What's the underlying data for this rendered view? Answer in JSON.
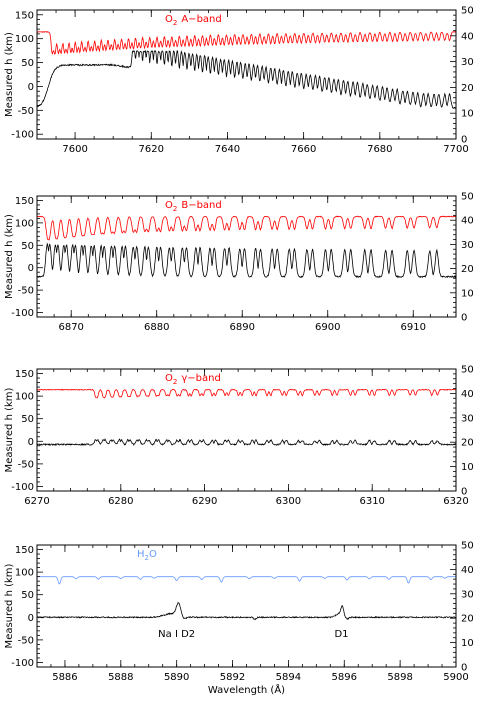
{
  "chart_data": [
    {
      "type": "line",
      "band_label": "O₂ A−band",
      "band_label_parts": {
        "species": "O",
        "sub": "2",
        "name": "A−band"
      },
      "ylabel": "Measured h (km)",
      "xlim": [
        7590,
        7700
      ],
      "ylim_left": [
        -110,
        160
      ],
      "ylim_right": [
        0,
        50
      ],
      "xticks": [
        7600,
        7620,
        7640,
        7660,
        7680,
        7700
      ],
      "xminor_step": 5,
      "yticks_left": [
        -100,
        -50,
        0,
        50,
        100,
        150
      ],
      "yticks_right": [
        0,
        10,
        20,
        30,
        40,
        50
      ],
      "series": [
        {
          "color": "#ff0000",
          "axis": "right",
          "kind": "spectrum",
          "baseline": 41.5,
          "lines": {
            "start": 7594,
            "end": 7698,
            "spacing0": 1.6,
            "growth": 0.012,
            "depth0": 7,
            "decay": 0.025,
            "width": 0.28,
            "pair": 0.45
          }
        },
        {
          "color": "#000000",
          "axis": "left",
          "kind": "profile",
          "baseline": -45,
          "rise_at": 7593,
          "plateau": 45,
          "peak_top": 55,
          "peaks_from": 7615,
          "lines": {
            "start": 7594,
            "end": 7698,
            "spacing0": 1.6,
            "growth": 0.012,
            "height0": 75,
            "decay": 0.018,
            "width": 0.32,
            "pair": 0.45
          }
        }
      ]
    },
    {
      "type": "line",
      "band_label": "O₂ B−band",
      "band_label_parts": {
        "species": "O",
        "sub": "2",
        "name": "B−band"
      },
      "ylabel": "Measured h (km)",
      "xlim": [
        6866,
        6915
      ],
      "ylim_left": [
        -110,
        160
      ],
      "ylim_right": [
        0,
        50
      ],
      "xticks": [
        6870,
        6880,
        6890,
        6900,
        6910
      ],
      "xminor_step": 2,
      "yticks_left": [
        -100,
        -50,
        0,
        50,
        100,
        150
      ],
      "yticks_right": [
        0,
        10,
        20,
        30,
        40,
        50
      ],
      "series": [
        {
          "color": "#ff0000",
          "axis": "right",
          "kind": "spectrum",
          "baseline": 41.5,
          "lines": {
            "start": 6867.2,
            "end": 6914,
            "spacing0": 0.95,
            "growth": 0.04,
            "depth0": 6,
            "decay": 0.02,
            "width": 0.16,
            "pair": 0.3
          }
        },
        {
          "color": "#000000",
          "axis": "left",
          "kind": "profile",
          "baseline": -20,
          "rise_at": 6866.5,
          "plateau": -20,
          "peak_top": 45,
          "peaks_from": 6867,
          "lines": {
            "start": 6867.2,
            "end": 6914,
            "spacing0": 0.95,
            "growth": 0.04,
            "height0": 80,
            "decay": 0.008,
            "width": 0.18,
            "pair": 0.3
          }
        }
      ]
    },
    {
      "type": "line",
      "band_label": "O₂ γ−band",
      "band_label_parts": {
        "species": "O",
        "sub": "2",
        "name": "γ−band"
      },
      "ylabel": "Measured h (km)",
      "xlim": [
        6270,
        6320
      ],
      "ylim_left": [
        -110,
        160
      ],
      "ylim_right": [
        0,
        50
      ],
      "xticks": [
        6270,
        6280,
        6290,
        6300,
        6310,
        6320
      ],
      "xminor_step": 2,
      "yticks_left": [
        -100,
        -50,
        0,
        50,
        100,
        150
      ],
      "yticks_right": [
        0,
        10,
        20,
        30,
        40,
        50
      ],
      "series": [
        {
          "color": "#ff0000",
          "axis": "right",
          "kind": "spectrum",
          "baseline": 41.5,
          "lines": {
            "start": 6277,
            "end": 6319,
            "spacing0": 0.9,
            "growth": 0.045,
            "depth0": 1.4,
            "decay": 0.01,
            "width": 0.12,
            "pair": 0.25
          }
        },
        {
          "color": "#000000",
          "axis": "left",
          "kind": "profile",
          "baseline": -7,
          "rise_at": 6270,
          "plateau": -7,
          "peak_top": 8,
          "peaks_from": 6276,
          "lines": {
            "start": 6277,
            "end": 6319,
            "spacing0": 0.9,
            "growth": 0.045,
            "height0": 12,
            "decay": 0.01,
            "width": 0.14,
            "pair": 0.25
          }
        }
      ]
    },
    {
      "type": "line",
      "band_label": "H₂O",
      "band_label_parts": {
        "species": "H",
        "sub": "2",
        "name": "O"
      },
      "ylabel": "Measured h (km)",
      "xlabel": "Wavelength (Å)",
      "xlim": [
        5885,
        5900
      ],
      "ylim_left": [
        -110,
        160
      ],
      "ylim_right": [
        0,
        50
      ],
      "xticks": [
        5886,
        5888,
        5890,
        5892,
        5894,
        5896,
        5898,
        5900
      ],
      "xminor_step": 0.5,
      "yticks_left": [
        -100,
        -50,
        0,
        50,
        100,
        150
      ],
      "yticks_right": [
        0,
        10,
        20,
        30,
        40,
        50
      ],
      "annotations": [
        {
          "text": "Na I D2",
          "x": 5890.0
        },
        {
          "text": "D1",
          "x": 5895.9
        }
      ],
      "series": [
        {
          "color": "#6699ff",
          "axis": "right",
          "kind": "h2o",
          "baseline": 37,
          "dips": [
            [
              5885.8,
              3
            ],
            [
              5886.4,
              0.8
            ],
            [
              5887.2,
              1
            ],
            [
              5888.0,
              0.8
            ],
            [
              5888.7,
              1.1
            ],
            [
              5889.2,
              0.6
            ],
            [
              5890.0,
              1.6
            ],
            [
              5890.9,
              1.2
            ],
            [
              5891.6,
              2.2
            ],
            [
              5892.6,
              0.8
            ],
            [
              5893.5,
              0.7
            ],
            [
              5894.4,
              1.8
            ],
            [
              5895.3,
              0.7
            ],
            [
              5896.1,
              1.4
            ],
            [
              5896.9,
              0.9
            ],
            [
              5897.6,
              1.1
            ],
            [
              5898.3,
              2.6
            ],
            [
              5899.1,
              1.2
            ],
            [
              5899.6,
              0.6
            ]
          ]
        },
        {
          "color": "#000000",
          "axis": "left",
          "kind": "na",
          "baseline": 0,
          "features": [
            [
              5889.8,
              8,
              0.25
            ],
            [
              5890.07,
              28,
              0.08
            ],
            [
              5890.25,
              -5,
              0.08
            ],
            [
              5892.8,
              -4,
              0.05
            ],
            [
              5895.82,
              8,
              0.12
            ],
            [
              5895.93,
              20,
              0.05
            ],
            [
              5896.1,
              -4,
              0.06
            ]
          ]
        }
      ]
    }
  ]
}
